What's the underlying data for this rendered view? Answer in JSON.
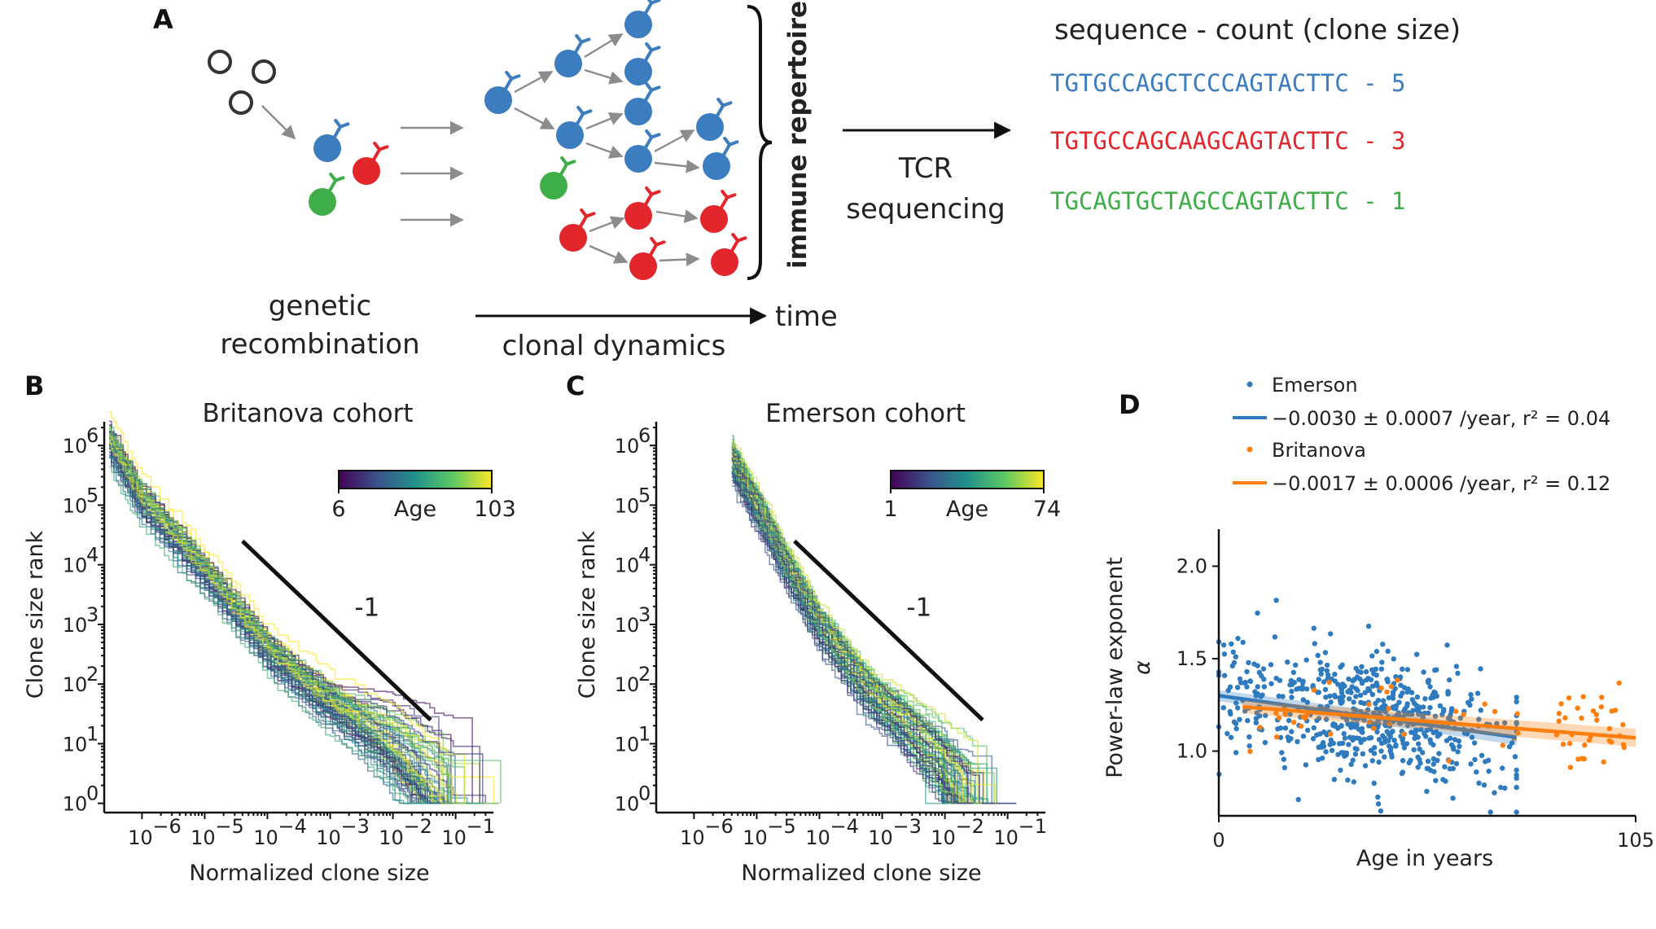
{
  "panels": {
    "A": "A",
    "B": "B",
    "C": "C",
    "D": "D"
  },
  "schematic": {
    "label_recombination_1": "genetic",
    "label_recombination_2": "recombination",
    "label_dynamics": "clonal dynamics",
    "label_time": "time",
    "label_repertoire": "immune repertoire",
    "label_tcr_1": "TCR",
    "label_tcr_2": "sequencing",
    "table_header": "sequence - count (clone size)",
    "sequences": [
      {
        "text": "TGTGCCAGCTCCCAGTACTTC - 5",
        "color": "#3b7dbf"
      },
      {
        "text": "TGTGCCAGCAAGCAGTACTTC - 3",
        "color": "#e3262b"
      },
      {
        "text": "TGCAGTGCTAGCCAGTACTTC - 1",
        "color": "#3fae49"
      }
    ],
    "cell_colors": {
      "blue": "#3b7dbf",
      "red": "#e3262b",
      "green": "#3fae49"
    }
  },
  "chart_data": [
    {
      "type": "line",
      "panel": "B",
      "title": "Britanova cohort",
      "xlabel": "Normalized clone size",
      "ylabel": "Clone size rank",
      "x_scale": "log",
      "y_scale": "log",
      "xlim": [
        2.5e-07,
        0.4
      ],
      "ylim": [
        0.7,
        2500000.0
      ],
      "x_ticks": [
        "10^-6",
        "10^-5",
        "10^-4",
        "10^-3",
        "10^-2",
        "10^-1"
      ],
      "y_ticks": [
        "10^0",
        "10^1",
        "10^2",
        "10^3",
        "10^4",
        "10^5",
        "10^6"
      ],
      "colorbar": {
        "label": "Age",
        "min": "6",
        "max": "103",
        "colormap": "viridis"
      },
      "slope_label": "-1",
      "slope_line": {
        "x": [
          4e-05,
          0.04
        ],
        "y": [
          25000,
          25
        ]
      },
      "series_count": 70,
      "curve_template": {
        "x": [
          3e-07,
          1e-06,
          1e-05,
          0.0001,
          0.0006,
          0.002,
          0.01,
          0.03,
          0.1
        ],
        "log10_rank": [
          6.1,
          5.1,
          3.9,
          2.6,
          1.9,
          1.55,
          1.0,
          0.5,
          0.0
        ]
      }
    },
    {
      "type": "line",
      "panel": "C",
      "title": "Emerson cohort",
      "xlabel": "Normalized clone size",
      "ylabel": "Clone size rank",
      "x_scale": "log",
      "y_scale": "log",
      "xlim": [
        2.5e-07,
        0.4
      ],
      "ylim": [
        0.7,
        2500000.0
      ],
      "x_ticks": [
        "10^-6",
        "10^-5",
        "10^-4",
        "10^-3",
        "10^-2",
        "10^-1"
      ],
      "y_ticks": [
        "10^0",
        "10^1",
        "10^2",
        "10^3",
        "10^4",
        "10^5",
        "10^6"
      ],
      "colorbar": {
        "label": "Age",
        "min": "1",
        "max": "74",
        "colormap": "viridis"
      },
      "slope_label": "-1",
      "slope_line": {
        "x": [
          4e-05,
          0.04
        ],
        "y": [
          25000,
          25
        ]
      },
      "series_count": 70,
      "curve_template": {
        "x": [
          4e-06,
          1e-05,
          3e-05,
          0.0001,
          0.0005,
          0.002,
          0.01,
          0.03
        ],
        "log10_rank": [
          5.8,
          5.0,
          4.0,
          3.0,
          2.0,
          1.4,
          0.6,
          0.0
        ]
      }
    },
    {
      "type": "scatter",
      "panel": "D",
      "xlabel": "Age in years",
      "ylabel": "Power-law exponent",
      "ylabel_symbol": "α",
      "xlim": [
        0,
        105
      ],
      "ylim": [
        0.65,
        2.2
      ],
      "x_ticks": [
        "0",
        "105"
      ],
      "y_ticks": [
        "1.0",
        "1.5",
        "2.0"
      ],
      "legend_placement": "top",
      "series": [
        {
          "name": "Emerson",
          "color": "#2f7bbf",
          "fit_label": "−0.0030 ± 0.0007 /year, r² = 0.04",
          "fit": {
            "slope": -0.003,
            "intercept": 1.3,
            "x": [
              0,
              75
            ],
            "ci": 0.03
          },
          "n_points": 620,
          "x_range": [
            0,
            75
          ],
          "y_center": 1.17
        },
        {
          "name": "Britanova",
          "color": "#ff7f0e",
          "fit_label": "−0.0017 ± 0.0006 /year, r² = 0.12",
          "fit": {
            "slope": -0.0017,
            "intercept": 1.25,
            "x": [
              6,
              105
            ],
            "ci": 0.035
          },
          "n_points": 70,
          "x_range": [
            6,
            103
          ],
          "y_center": 1.15
        }
      ]
    }
  ]
}
